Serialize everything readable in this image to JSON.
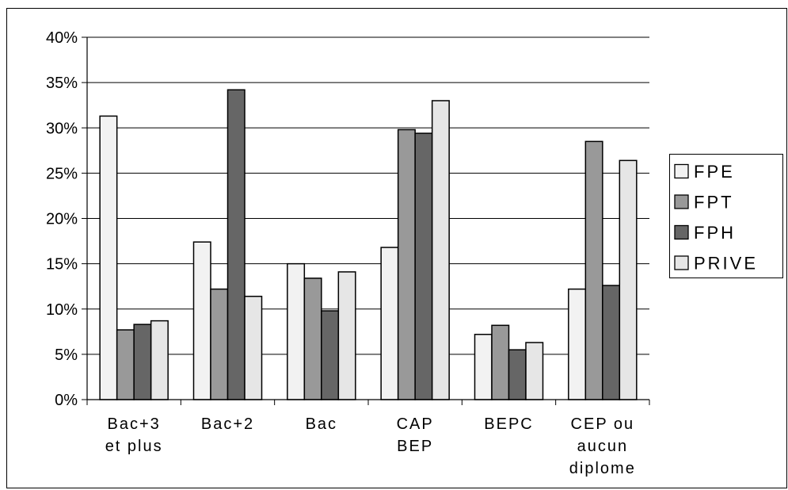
{
  "chart_data": {
    "type": "bar",
    "title": "",
    "xlabel": "",
    "ylabel": "",
    "categories": [
      [
        "Bac+3",
        "et plus"
      ],
      [
        "Bac+2"
      ],
      [
        "Bac"
      ],
      [
        "CAP",
        "BEP"
      ],
      [
        "BEPC"
      ],
      [
        "CEP ou",
        "aucun",
        "diplome"
      ]
    ],
    "series": [
      {
        "name": "FPE",
        "color": "#f2f2f2",
        "values": [
          31.3,
          17.4,
          15.0,
          16.8,
          7.2,
          12.2
        ]
      },
      {
        "name": "FPT",
        "color": "#999999",
        "values": [
          7.7,
          12.2,
          13.4,
          29.8,
          8.2,
          28.5
        ]
      },
      {
        "name": "FPH",
        "color": "#666666",
        "values": [
          8.3,
          34.2,
          9.8,
          29.4,
          5.5,
          12.6
        ]
      },
      {
        "name": "PRIVE",
        "color": "#e6e6e6",
        "values": [
          8.7,
          11.4,
          14.1,
          33.0,
          6.3,
          26.4
        ]
      }
    ],
    "ylim": [
      0,
      40
    ],
    "yticks": [
      "0%",
      "5%",
      "10%",
      "15%",
      "20%",
      "25%",
      "30%",
      "35%",
      "40%"
    ],
    "grid": true,
    "legend_position": "right"
  }
}
